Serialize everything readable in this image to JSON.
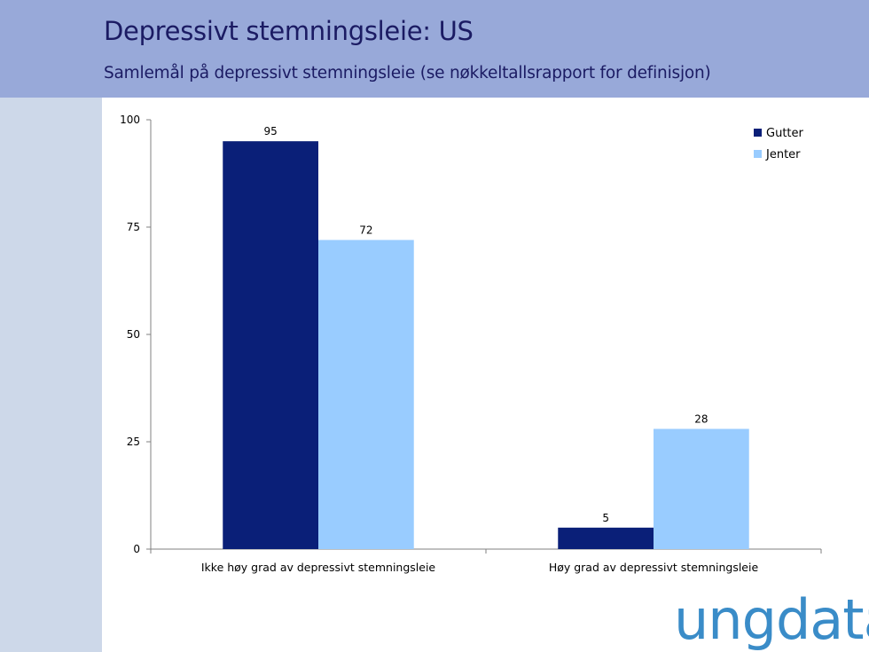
{
  "header": {
    "title": "Depressivt stemningsleie: US",
    "subtitle": "Samlemål på depressivt stemningsleie (se nøkkeltallsrapport for definisjon)"
  },
  "logo": {
    "text": "ungdata",
    "color": "#3A8CC8"
  },
  "colors": {
    "header_bg": "#98A9D9",
    "sidebar_bg": "#CDD8E9",
    "title_text": "#1B1B63"
  },
  "chart_data": {
    "type": "bar",
    "categories": [
      "Ikke høy grad av depressivt stemningsleie",
      "Høy grad av depressivt stemningsleie"
    ],
    "series": [
      {
        "name": "Gutter",
        "values": [
          95,
          5
        ],
        "color": "#0A1F78"
      },
      {
        "name": "Jenter",
        "values": [
          72,
          28
        ],
        "color": "#99CCFF"
      }
    ],
    "ylim": [
      0,
      100
    ],
    "yticks": [
      0,
      25,
      50,
      75,
      100
    ],
    "data_labels": true,
    "grid": false,
    "legend_position": "top-right"
  }
}
